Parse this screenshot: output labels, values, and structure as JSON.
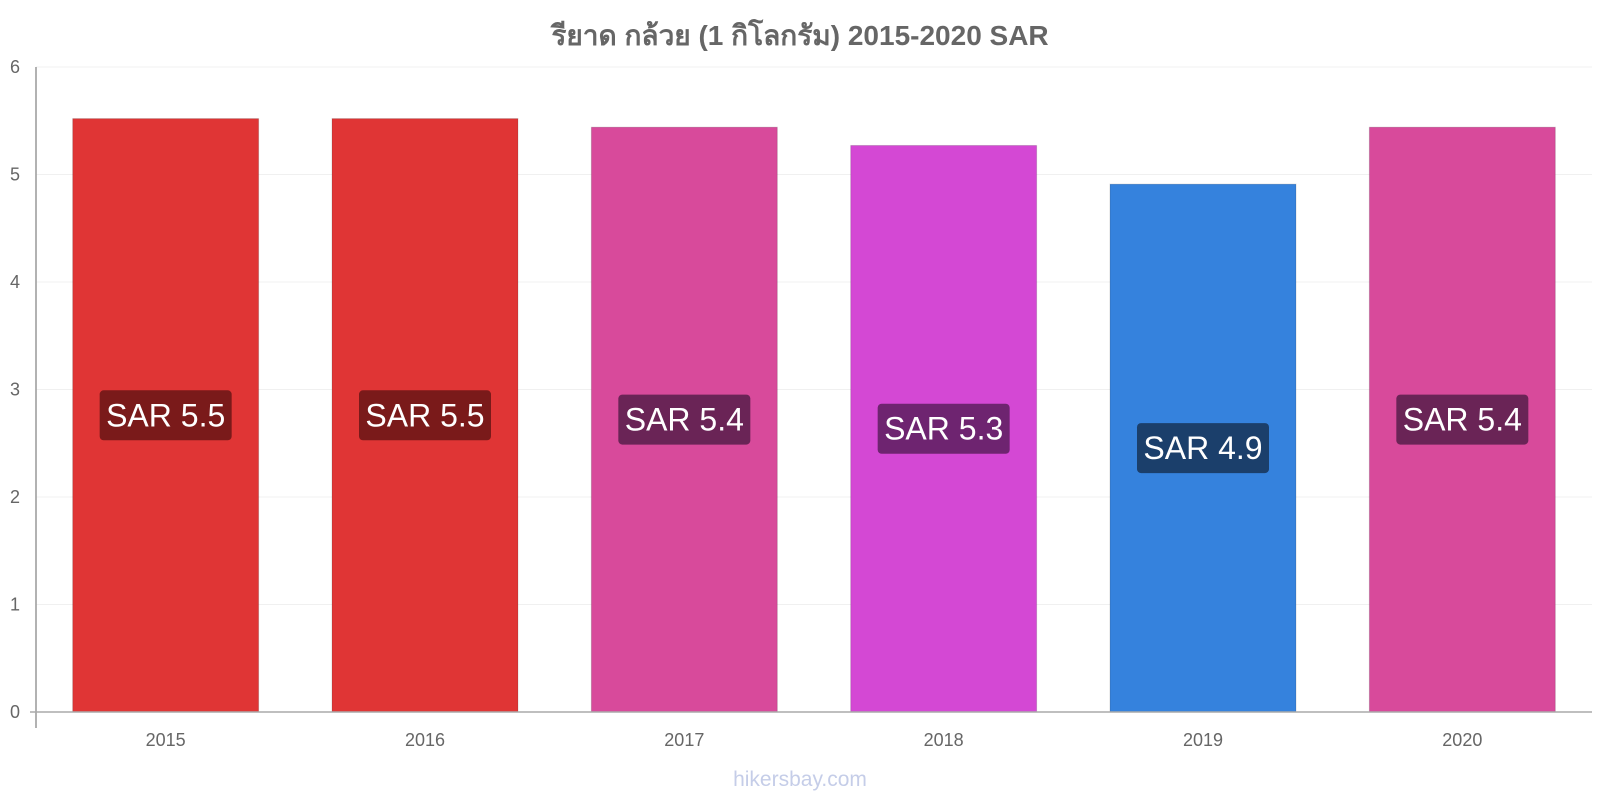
{
  "chart_data": {
    "type": "bar",
    "title": "รียาด กล้วย (1 กิโลกรัม) 2015-2020 SAR",
    "categories": [
      "2015",
      "2016",
      "2017",
      "2018",
      "2019",
      "2020"
    ],
    "values": [
      5.52,
      5.52,
      5.44,
      5.27,
      4.91,
      5.44
    ],
    "data_labels": [
      "SAR 5.5",
      "SAR 5.5",
      "SAR 5.4",
      "SAR 5.3",
      "SAR 4.9",
      "SAR 5.4"
    ],
    "bar_colors": [
      "#e03535",
      "#e03535",
      "#d84a9b",
      "#d448d4",
      "#3582dd",
      "#d84a9b"
    ],
    "label_bg_colors": [
      "#7a1a1a",
      "#7a1a1a",
      "#6a2456",
      "#6e2470",
      "#1b3f6b",
      "#6a2456"
    ],
    "ylim": [
      0,
      6
    ],
    "yticks": [
      0,
      1,
      2,
      3,
      4,
      5,
      6
    ],
    "xlabel": "",
    "ylabel": "",
    "grid": true,
    "legend": "none"
  },
  "watermark": "hikersbay.com"
}
